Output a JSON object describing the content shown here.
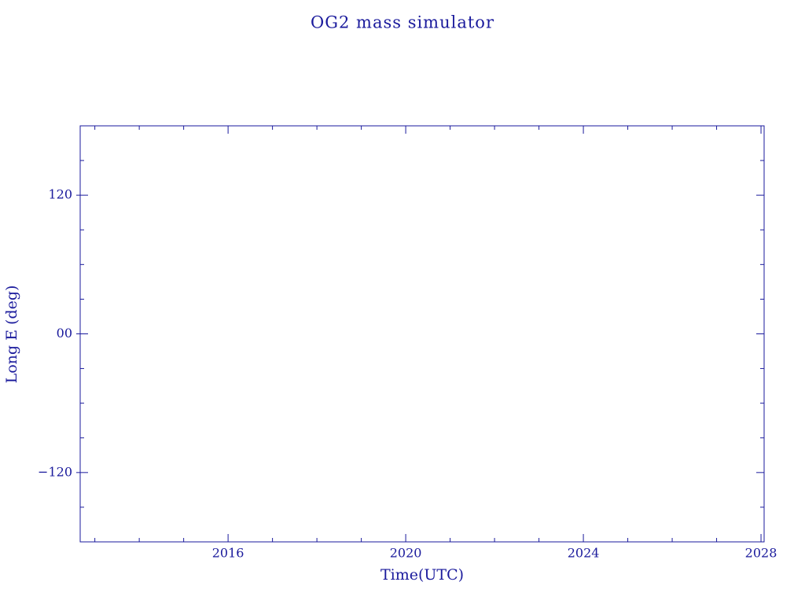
{
  "chart_data": {
    "type": "line",
    "title": "OG2 mass simulator",
    "xlabel": "Time(UTC)",
    "ylabel": "Long E (deg)",
    "color": "#1a1a9c",
    "xlim": [
      2012.67,
      2028.07
    ],
    "xticks": [
      2016,
      2020,
      2024,
      2028
    ],
    "xticks_minor": [
      2013,
      2014,
      2015,
      2017,
      2018,
      2019,
      2021,
      2022,
      2023,
      2025,
      2026,
      2027
    ],
    "ylim": [
      -180,
      180
    ],
    "yticks": [
      {
        "value": -120,
        "label": "−120"
      },
      {
        "value": 0,
        "label": "00"
      },
      120
    ],
    "yticks_minor": [
      -150,
      -90,
      -60,
      -30,
      30,
      60,
      90,
      150
    ],
    "ticks_mirrored": true,
    "series": []
  }
}
